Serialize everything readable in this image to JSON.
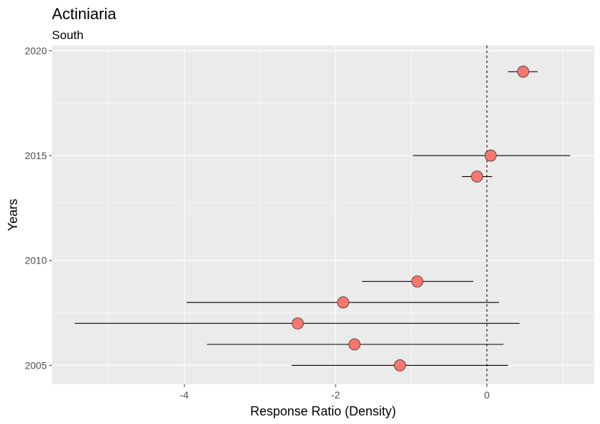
{
  "chart_data": {
    "type": "scatter",
    "title": "Actiniaria",
    "subtitle": "South",
    "xlabel": "Response Ratio (Density)",
    "ylabel": "Years",
    "xlim": [
      -5.75,
      1.42
    ],
    "ylim": [
      2004.1,
      2020.25
    ],
    "x_ticks": [
      -4,
      -2,
      0
    ],
    "y_ticks": [
      2005,
      2010,
      2015,
      2020
    ],
    "x_tick_labels": [
      "-4",
      "-2",
      "0"
    ],
    "y_tick_labels": [
      "2005",
      "2010",
      "2015",
      "2020"
    ],
    "reference_line_x": 0,
    "grid": true,
    "points": [
      {
        "year": 2005,
        "x": -1.15,
        "lo": -2.58,
        "hi": 0.28
      },
      {
        "year": 2006,
        "x": -1.75,
        "lo": -3.7,
        "hi": 0.22
      },
      {
        "year": 2007,
        "x": -2.5,
        "lo": -5.45,
        "hi": 0.43
      },
      {
        "year": 2008,
        "x": -1.9,
        "lo": -3.97,
        "hi": 0.16
      },
      {
        "year": 2009,
        "x": -0.92,
        "lo": -1.65,
        "hi": -0.18
      },
      {
        "year": 2014,
        "x": -0.13,
        "lo": -0.33,
        "hi": 0.07
      },
      {
        "year": 2015,
        "x": 0.05,
        "lo": -0.98,
        "hi": 1.1
      },
      {
        "year": 2019,
        "x": 0.48,
        "lo": 0.28,
        "hi": 0.67
      }
    ],
    "point_color": "#f8766d",
    "panel_color": "#ebebeb"
  }
}
